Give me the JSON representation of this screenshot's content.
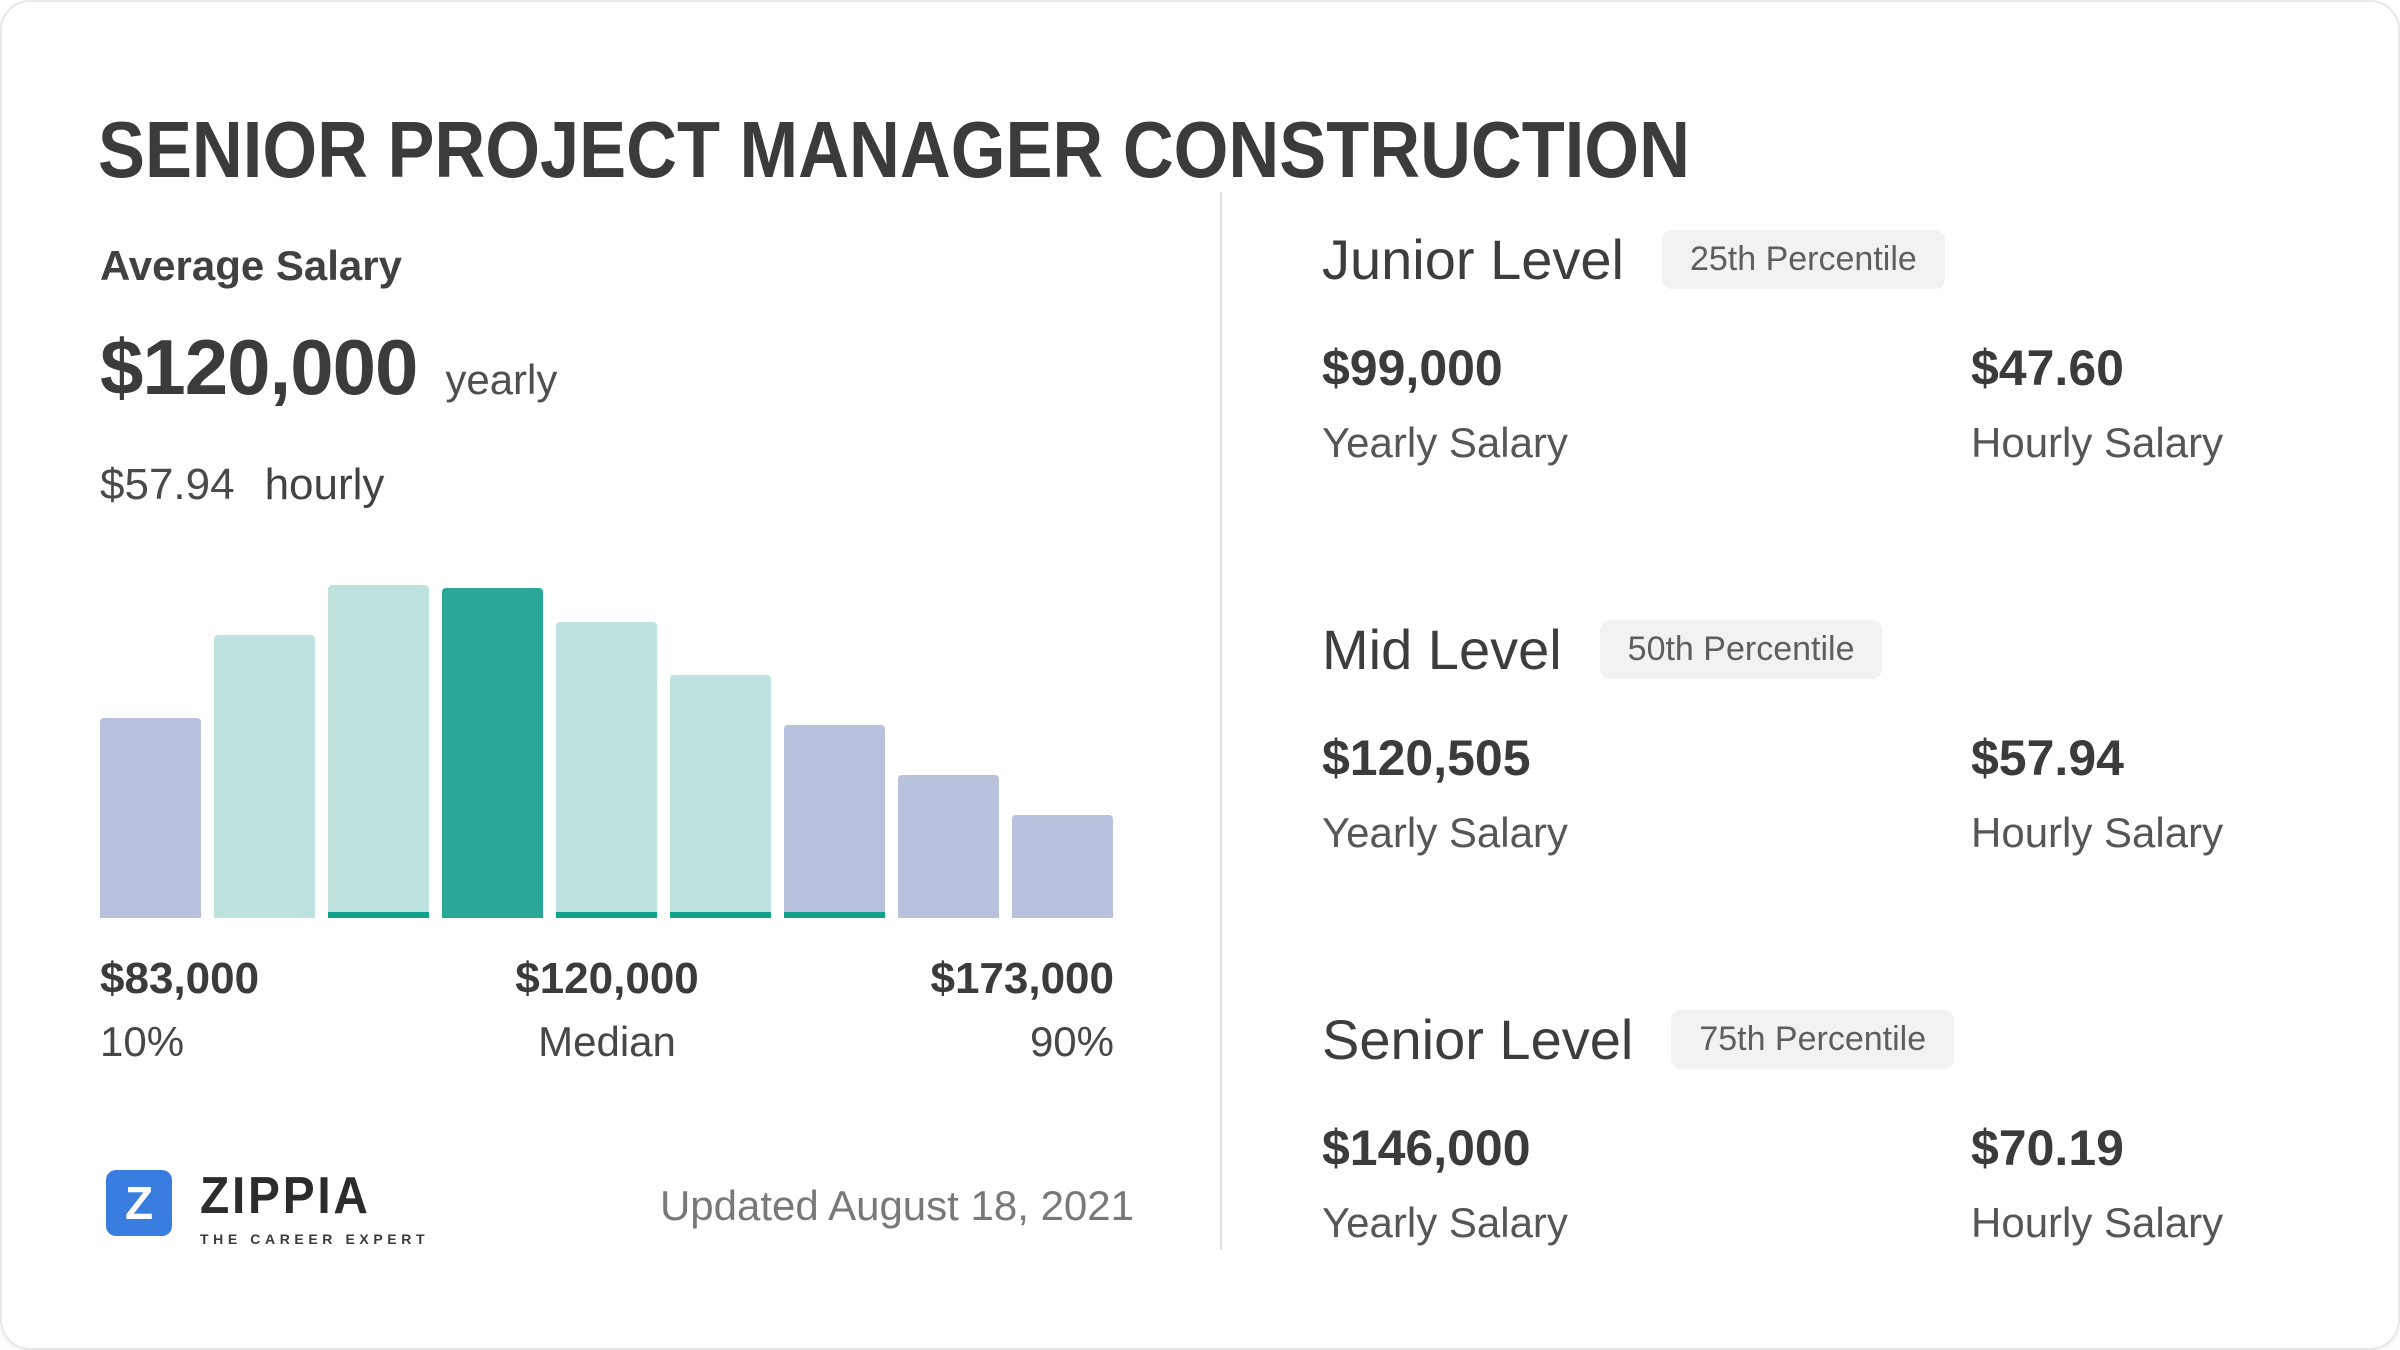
{
  "page": {
    "title": "SENIOR PROJECT MANAGER CONSTRUCTION",
    "updated": "Updated August 18, 2021"
  },
  "brand": {
    "name": "ZIPPIA",
    "tagline": "THE CAREER EXPERT",
    "logo_letter": "Z",
    "logo_color": "#3a7de0"
  },
  "average": {
    "heading": "Average Salary",
    "yearly_value": "$120,000",
    "yearly_unit": "yearly",
    "hourly_value": "$57.94",
    "hourly_unit": "hourly"
  },
  "chart_data": {
    "type": "bar",
    "title": "Salary distribution histogram from 10th to 90th percentile",
    "grid": false,
    "legend": false,
    "ylim": [
      0,
      100
    ],
    "bars": [
      {
        "height_pct": 60,
        "color": "lavender",
        "strip": false
      },
      {
        "height_pct": 85,
        "color": "teal_light",
        "strip": false
      },
      {
        "height_pct": 100,
        "color": "teal_light",
        "strip": true
      },
      {
        "height_pct": 99,
        "color": "teal_dark",
        "strip": false
      },
      {
        "height_pct": 89,
        "color": "teal_light",
        "strip": true
      },
      {
        "height_pct": 73,
        "color": "teal_light",
        "strip": true
      },
      {
        "height_pct": 58,
        "color": "lavender",
        "strip": true
      },
      {
        "height_pct": 43,
        "color": "lavender",
        "strip": false
      },
      {
        "height_pct": 31,
        "color": "lavender",
        "strip": false
      }
    ],
    "palette": {
      "lavender": "#b9c1dd",
      "teal_light": "#bee3df",
      "teal_dark": "#2aa797",
      "strip": "#12a18b"
    },
    "x_markers": [
      {
        "value": "$83,000",
        "caption": "10%"
      },
      {
        "value": "$120,000",
        "caption": "Median"
      },
      {
        "value": "$173,000",
        "caption": "90%"
      }
    ]
  },
  "levels": [
    {
      "name": "Junior Level",
      "badge": "25th Percentile",
      "yearly": "$99,000",
      "yearly_label": "Yearly Salary",
      "hourly": "$47.60",
      "hourly_label": "Hourly Salary"
    },
    {
      "name": "Mid Level",
      "badge": "50th Percentile",
      "yearly": "$120,505",
      "yearly_label": "Yearly Salary",
      "hourly": "$57.94",
      "hourly_label": "Hourly Salary"
    },
    {
      "name": "Senior Level",
      "badge": "75th Percentile",
      "yearly": "$146,000",
      "yearly_label": "Yearly Salary",
      "hourly": "$70.19",
      "hourly_label": "Hourly Salary"
    }
  ],
  "colors": {
    "text_dark": "#3b3b3b",
    "text_gray": "#565656",
    "updated_gray": "#787878",
    "badge_bg": "#f2f2f2",
    "divider": "#e2e2e2",
    "card_border": "#e8e8e8"
  }
}
